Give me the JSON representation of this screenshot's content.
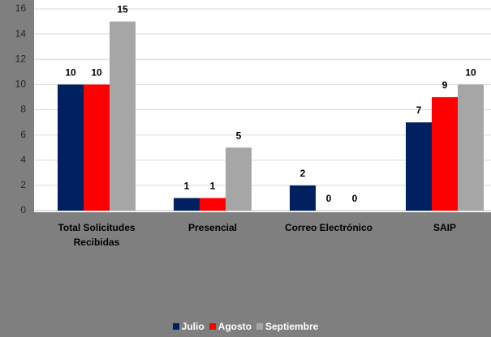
{
  "chart_data": {
    "type": "bar",
    "categories": [
      "Total Solicitudes Recibidas",
      "Presencial",
      "Correo Electrónico",
      "SAIP"
    ],
    "series": [
      {
        "name": "Julio",
        "color": "#002060",
        "values": [
          10,
          1,
          2,
          7
        ]
      },
      {
        "name": "Agosto",
        "color": "#ff0000",
        "values": [
          10,
          1,
          0,
          9
        ]
      },
      {
        "name": "Septiembre",
        "color": "#a6a6a6",
        "values": [
          15,
          5,
          0,
          10
        ]
      }
    ],
    "ylim": [
      0,
      16
    ],
    "yticks": [
      0,
      2,
      4,
      6,
      8,
      10,
      12,
      14,
      16
    ],
    "grid": true,
    "legend": "bottom"
  }
}
